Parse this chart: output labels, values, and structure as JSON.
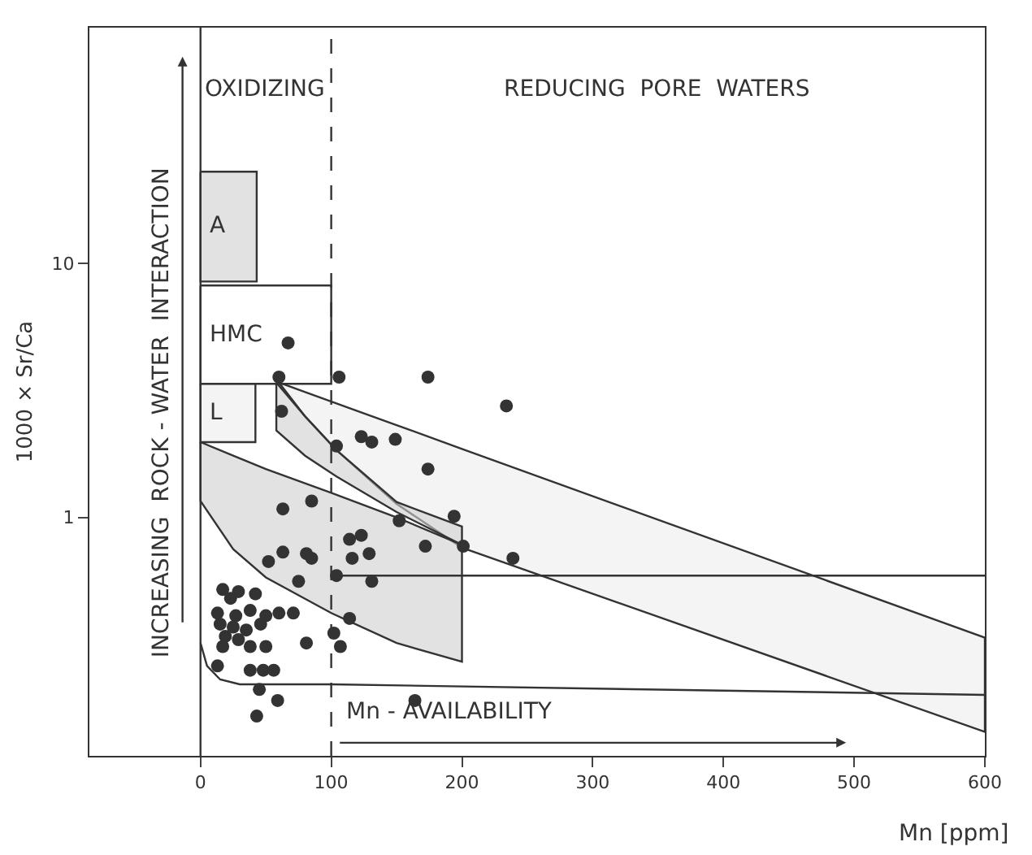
{
  "chart_data": {
    "type": "scatter",
    "xlabel": "Mn [ppm]",
    "ylabel": "1000 × Sr/Ca",
    "xlim": [
      -85,
      600
    ],
    "xticks": [
      0,
      100,
      200,
      300,
      400,
      500,
      600
    ],
    "ylim": [
      0.115,
      85
    ],
    "yticks": [
      1,
      10
    ],
    "log": "y",
    "grid": false,
    "annotations": [
      "OXIDIZING",
      "REDUCING  PORE  WATERS",
      "INCREASING  ROCK - WATER  INTERACTION",
      "Mn - AVAILABILITY"
    ],
    "ref_lines": [
      {
        "axis": "x",
        "value": 0,
        "line_style": "solid",
        "color": "#333333"
      },
      {
        "axis": "x",
        "value": 100,
        "line_style": "dashed",
        "color": "#333333"
      }
    ],
    "series": [
      {
        "type": "area",
        "color": "#ececec",
        "x": [
          60,
          80,
          104,
          150,
          200,
          600,
          600,
          200,
          150,
          104,
          80,
          60
        ],
        "values": [
          3.4,
          3.12,
          2.81,
          2.31,
          1.86,
          0.336,
          0.143,
          0.76,
          1.13,
          1.84,
          2.5,
          3.4
        ]
      },
      {
        "type": "area",
        "color": "#cfcfcf",
        "x": [
          0,
          25,
          50,
          100,
          150,
          200,
          200,
          150,
          100,
          50,
          25,
          0,
          0
        ],
        "values": [
          1.98,
          1.75,
          1.55,
          1.25,
          1.0,
          0.78,
          0.27,
          0.32,
          0.42,
          0.58,
          0.75,
          1.16,
          1.98
        ]
      },
      {
        "type": "area",
        "color": "#cfcfcf",
        "x": [
          58,
          80,
          104,
          150,
          200,
          200,
          150,
          104,
          80,
          58,
          58
        ],
        "values": [
          3.4,
          2.5,
          1.84,
          1.15,
          0.92,
          0.78,
          1.05,
          1.45,
          1.75,
          2.2,
          3.4
        ]
      },
      {
        "type": "area",
        "name": "A",
        "color": "#cfcfcf",
        "x": [
          0,
          43,
          43,
          0,
          0
        ],
        "values": [
          23,
          23,
          8.5,
          8.5,
          23
        ]
      },
      {
        "type": "area",
        "name": "HMC",
        "color": "#ffffff",
        "x": [
          0,
          100,
          100,
          0,
          0
        ],
        "values": [
          8.2,
          8.2,
          3.36,
          3.36,
          8.2
        ]
      },
      {
        "type": "area",
        "name": "L",
        "color": "#ececec",
        "x": [
          0,
          42,
          42,
          0,
          0
        ],
        "values": [
          3.36,
          3.36,
          1.98,
          1.98,
          3.36
        ]
      },
      {
        "type": "line",
        "color": "#333333",
        "line_style": "solid",
        "x": [
          0,
          5,
          15,
          30,
          100,
          600
        ],
        "values": [
          0.32,
          0.26,
          0.23,
          0.22,
          0.22,
          0.2
        ]
      },
      {
        "type": "line",
        "color": "#333333",
        "line_style": "solid",
        "x": [
          100,
          600
        ],
        "values": [
          0.59,
          0.59
        ]
      },
      {
        "color": "#333333",
        "marker": "circle",
        "x": [
          67,
          60,
          106,
          174,
          62,
          104,
          123,
          131,
          149,
          174,
          63,
          85,
          152,
          194,
          201,
          172,
          114,
          123,
          116,
          129,
          63,
          81,
          85,
          52,
          75,
          104,
          131,
          114,
          102,
          107,
          81,
          17,
          29,
          42,
          23,
          13,
          27,
          38,
          50,
          60,
          71,
          15,
          25,
          35,
          46,
          19,
          29,
          38,
          17,
          50,
          13,
          38,
          48,
          56,
          45,
          59,
          43,
          164,
          234,
          239
        ],
        "values": [
          4.87,
          3.57,
          3.57,
          3.57,
          2.62,
          1.91,
          2.08,
          1.98,
          2.03,
          1.55,
          1.08,
          1.16,
          0.97,
          1.01,
          0.77,
          0.77,
          0.82,
          0.85,
          0.69,
          0.72,
          0.73,
          0.72,
          0.69,
          0.67,
          0.56,
          0.59,
          0.56,
          0.4,
          0.35,
          0.31,
          0.32,
          0.52,
          0.51,
          0.5,
          0.48,
          0.42,
          0.41,
          0.43,
          0.41,
          0.42,
          0.42,
          0.38,
          0.37,
          0.36,
          0.38,
          0.34,
          0.33,
          0.31,
          0.31,
          0.31,
          0.26,
          0.25,
          0.25,
          0.25,
          0.21,
          0.19,
          0.165,
          0.19,
          2.75,
          0.69
        ]
      }
    ]
  }
}
